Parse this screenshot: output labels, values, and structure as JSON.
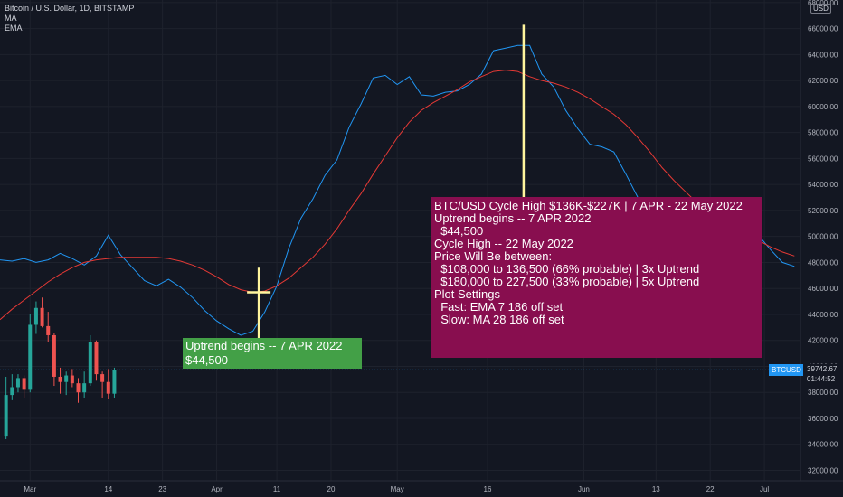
{
  "legend": {
    "symbol": "Bitcoin / U.S. Dollar, 1D, BITSTAMP",
    "ma": "MA",
    "ema": "EMA"
  },
  "currency_button": "USD",
  "callout_green": {
    "line1": "Uptrend begins -- 7 APR 2022",
    "line2": "$44,500",
    "color": "#43a047"
  },
  "callout_red": {
    "color": "#880e4f",
    "lines": [
      "BTC/USD Cycle High $136K-$227K | 7 APR - 22 May 2022",
      "",
      "Uptrend begins -- 7 APR 2022",
      "  $44,500",
      "",
      "Cycle High -- 22 May 2022",
      "Price Will Be between:",
      "  $108,000 to 136,500 (66% probable) | 3x Uptrend",
      "  $180,000 to 227,500 (33% probable) | 5x Uptrend",
      "",
      "Plot Settings",
      "  Fast: EMA 7 186 off set",
      "  Slow: MA 28 186 off set"
    ]
  },
  "price_tag": {
    "symbol": "BTCUSD",
    "price": "39742.67",
    "countdown": "01:44:52"
  },
  "chart_data": {
    "type": "line",
    "title": "Bitcoin / U.S. Dollar, 1D, BITSTAMP",
    "colors": {
      "ema": "#2196f3",
      "ma": "#e53935",
      "up": "#26a69a",
      "down": "#ef5350",
      "vline": "#fff59d",
      "background": "#131722"
    },
    "ylim": [
      31200,
      68200
    ],
    "y_ticks": [
      32000,
      34000,
      36000,
      38000,
      40000,
      42000,
      44000,
      46000,
      48000,
      50000,
      52000,
      54000,
      56000,
      58000,
      60000,
      62000,
      64000,
      66000,
      68000
    ],
    "y_tick_labels": [
      "32000.00",
      "34000.00",
      "36000.00",
      "38000.00",
      "40000.00",
      "42000.00",
      "44000.00",
      "46000.00",
      "48000.00",
      "50000.00",
      "52000.00",
      "54000.00",
      "56000.00",
      "58000.00",
      "60000.00",
      "62000.00",
      "64000.00",
      "66000.00",
      "68000.00"
    ],
    "x_ticks": [
      "Mar",
      "14",
      "23",
      "Apr",
      "11",
      "20",
      "May",
      "16",
      "Jun",
      "13",
      "22",
      "Jul"
    ],
    "x_tick_days": [
      0,
      13,
      22,
      31,
      41,
      50,
      61,
      76,
      92,
      104,
      113,
      122
    ],
    "day_range": [
      -5,
      128
    ],
    "grid": true,
    "current_price": 39742.67,
    "series": [
      {
        "name": "EMA",
        "x": [
          -5,
          -3,
          -1,
          1,
          3,
          5,
          7,
          9,
          11,
          13,
          15,
          17,
          19,
          21,
          23,
          25,
          27,
          29,
          31,
          33,
          35,
          37,
          39,
          41,
          43,
          45,
          47,
          49,
          51,
          53,
          55,
          57,
          59,
          61,
          63,
          65,
          67,
          69,
          71,
          73,
          75,
          77,
          79,
          81,
          83,
          85,
          87,
          89,
          91,
          93,
          95,
          97,
          99,
          101,
          103,
          105,
          107,
          109,
          111,
          113,
          115,
          117,
          119,
          121,
          123,
          125,
          127
        ],
        "values": [
          48200,
          48100,
          48300,
          48000,
          48200,
          48700,
          48300,
          47800,
          48500,
          50100,
          48600,
          47600,
          46600,
          46200,
          46700,
          46100,
          45300,
          44300,
          43500,
          42900,
          42400,
          42700,
          44200,
          46200,
          49100,
          51400,
          52900,
          54700,
          55900,
          58400,
          60200,
          62200,
          62400,
          61700,
          62300,
          60900,
          60800,
          61100,
          61200,
          61700,
          62500,
          64300,
          64500,
          64700,
          64700,
          62500,
          61500,
          59700,
          58300,
          57100,
          56900,
          56500,
          54800,
          53000,
          51400,
          49800,
          48300,
          47600,
          47300,
          47100,
          47600,
          48800,
          49700,
          50100,
          49000,
          48000,
          47700
        ]
      },
      {
        "name": "MA",
        "x": [
          -5,
          -3,
          -1,
          1,
          3,
          5,
          7,
          9,
          11,
          13,
          15,
          17,
          19,
          21,
          23,
          25,
          27,
          29,
          31,
          33,
          35,
          37,
          39,
          41,
          43,
          45,
          47,
          49,
          51,
          53,
          55,
          57,
          59,
          61,
          63,
          65,
          67,
          69,
          71,
          73,
          75,
          77,
          79,
          81,
          83,
          85,
          87,
          89,
          91,
          93,
          95,
          97,
          99,
          101,
          103,
          105,
          107,
          109,
          111,
          113,
          115,
          117,
          119,
          121,
          123,
          125,
          127
        ],
        "values": [
          43600,
          44400,
          45100,
          45800,
          46500,
          47100,
          47600,
          48000,
          48200,
          48300,
          48400,
          48400,
          48400,
          48400,
          48300,
          48100,
          47800,
          47400,
          46900,
          46300,
          45900,
          45700,
          45800,
          46200,
          46800,
          47600,
          48400,
          49400,
          50600,
          52000,
          53300,
          54800,
          56200,
          57600,
          58800,
          59700,
          60300,
          60800,
          61300,
          61900,
          62300,
          62700,
          62800,
          62700,
          62300,
          62000,
          61800,
          61500,
          61100,
          60600,
          60000,
          59400,
          58600,
          57600,
          56500,
          55300,
          54300,
          53400,
          52500,
          51700,
          51100,
          50600,
          50100,
          49700,
          49200,
          48800,
          48500
        ]
      }
    ],
    "candles": [
      {
        "x": -4,
        "o": 34600,
        "h": 39200,
        "l": 34400,
        "c": 37800
      },
      {
        "x": -3,
        "o": 37800,
        "h": 39400,
        "l": 37400,
        "c": 38400
      },
      {
        "x": -2,
        "o": 38400,
        "h": 39400,
        "l": 38000,
        "c": 39100
      },
      {
        "x": -1,
        "o": 39100,
        "h": 39300,
        "l": 37600,
        "c": 38200
      },
      {
        "x": 0,
        "o": 38200,
        "h": 44000,
        "l": 38000,
        "c": 43200
      },
      {
        "x": 1,
        "o": 43200,
        "h": 45000,
        "l": 42500,
        "c": 44500
      },
      {
        "x": 2,
        "o": 44500,
        "h": 45300,
        "l": 43000,
        "c": 43100
      },
      {
        "x": 3,
        "o": 43100,
        "h": 44200,
        "l": 41900,
        "c": 42400
      },
      {
        "x": 4,
        "o": 42400,
        "h": 42600,
        "l": 38500,
        "c": 39200
      },
      {
        "x": 5,
        "o": 39200,
        "h": 39900,
        "l": 37900,
        "c": 38800
      },
      {
        "x": 6,
        "o": 38800,
        "h": 39600,
        "l": 37800,
        "c": 39300
      },
      {
        "x": 7,
        "o": 39300,
        "h": 39800,
        "l": 38400,
        "c": 38700
      },
      {
        "x": 8,
        "o": 38700,
        "h": 39100,
        "l": 37200,
        "c": 38000
      },
      {
        "x": 9,
        "o": 38000,
        "h": 39600,
        "l": 37600,
        "c": 38700
      },
      {
        "x": 10,
        "o": 38700,
        "h": 42400,
        "l": 38500,
        "c": 41900
      },
      {
        "x": 11,
        "o": 41900,
        "h": 42000,
        "l": 38900,
        "c": 39400
      },
      {
        "x": 12,
        "o": 39400,
        "h": 39600,
        "l": 37600,
        "c": 38800
      },
      {
        "x": 13,
        "o": 38800,
        "h": 39800,
        "l": 37500,
        "c": 37900
      },
      {
        "x": 14,
        "o": 37900,
        "h": 39900,
        "l": 37600,
        "c": 39700
      }
    ],
    "marker": {
      "day": 38,
      "value": 45700
    },
    "vertical_lines": [
      {
        "day": 38,
        "from": 42100,
        "to": 47600
      },
      {
        "day": 82,
        "from": 52800,
        "to": 66300
      }
    ]
  }
}
